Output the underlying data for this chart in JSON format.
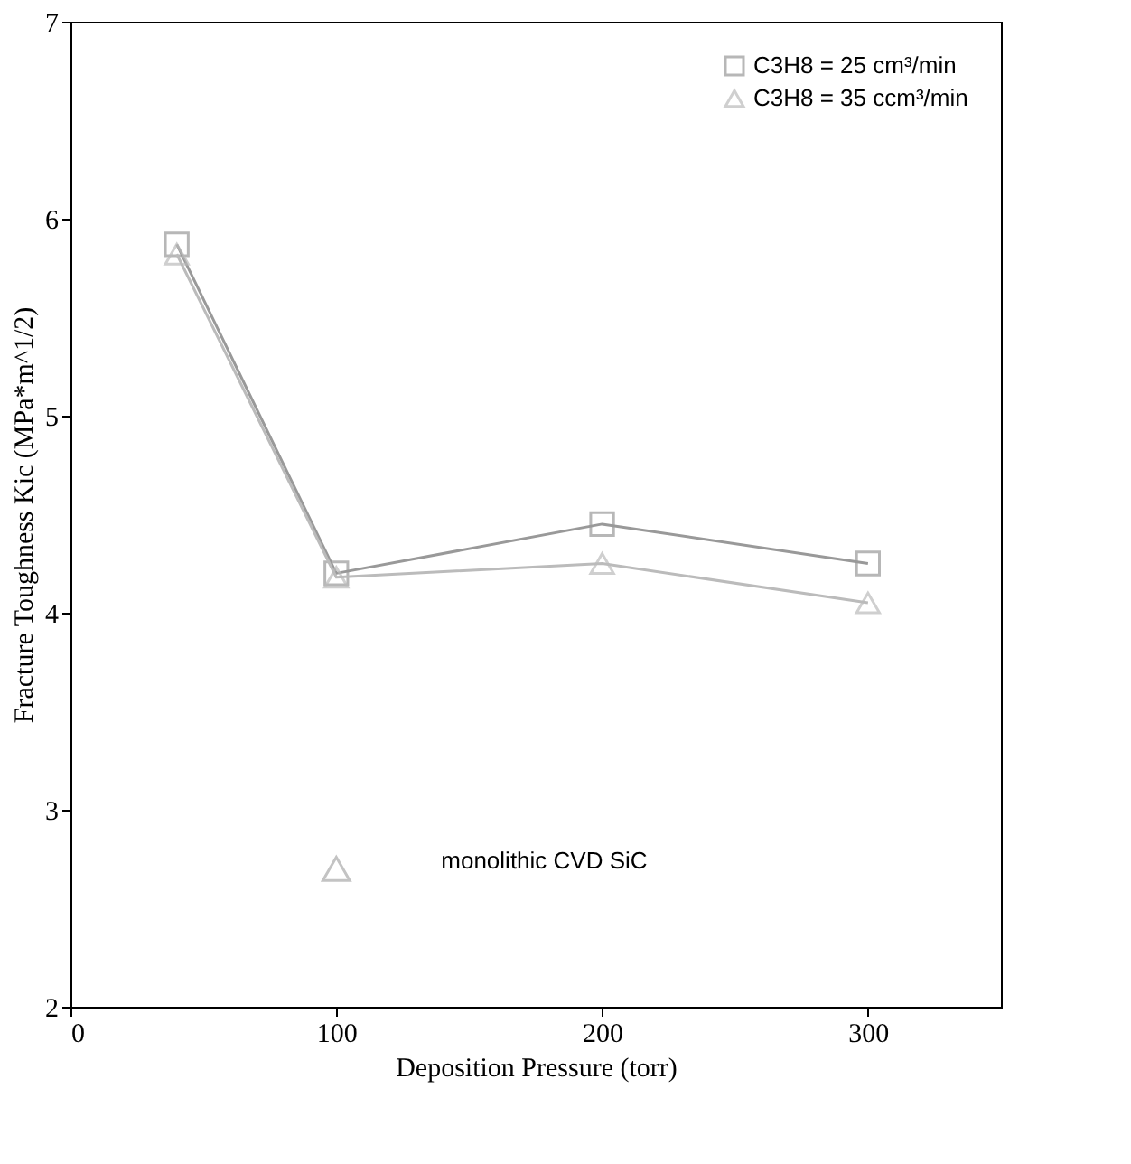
{
  "chart_data": {
    "type": "line",
    "xlabel": "Deposition Pressure (torr)",
    "ylabel": "Fracture Toughness Kic (MPa*m^1/2)",
    "xlim": [
      0,
      350
    ],
    "xticks": [
      0,
      100,
      200,
      300
    ],
    "ylim": [
      2,
      7
    ],
    "yticks": [
      2,
      3,
      4,
      5,
      6,
      7
    ],
    "grid": false,
    "legend": "top right",
    "line_style": "solid",
    "series": [
      {
        "name": "C3H8 = 25 cm³/min",
        "color": "#999999",
        "marker": "square",
        "x": [
          40,
          100,
          200,
          300
        ],
        "values": [
          5.87,
          4.2,
          4.45,
          4.25
        ]
      },
      {
        "name": "C3H8 = 35 ccm³/min",
        "color": "#bbbbbb",
        "marker": "triangle",
        "x": [
          40,
          100,
          200,
          300
        ],
        "values": [
          5.82,
          4.18,
          4.25,
          4.05
        ]
      },
      {
        "type": "scatter",
        "color": "#aaaaaa",
        "marker": "triangle",
        "x": [
          100
        ],
        "values": [
          2.7
        ]
      }
    ],
    "annotations": [
      "monolithic CVD SiC"
    ]
  }
}
